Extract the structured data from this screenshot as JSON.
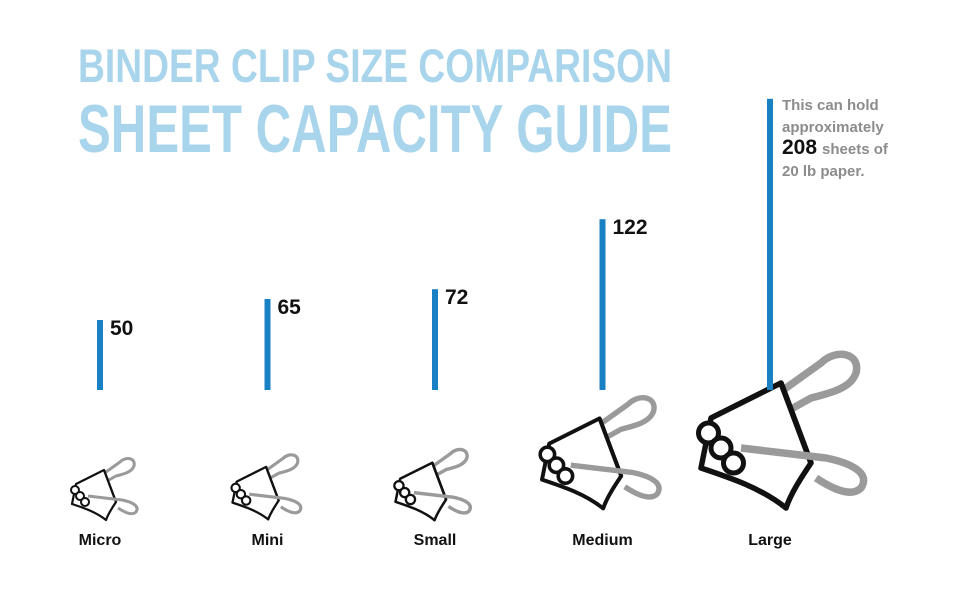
{
  "chart_data": {
    "type": "bar",
    "title": "BINDER CLIP SIZE COMPARISON",
    "subtitle": "SHEET CAPACITY GUIDE",
    "categories": [
      "Micro",
      "Mini",
      "Small",
      "Medium",
      "Large"
    ],
    "values": [
      50,
      65,
      72,
      122,
      208
    ],
    "color": "#1a80c4",
    "annotation": {
      "lines_before": [
        "This can hold",
        "approximately"
      ],
      "after_value": [
        "sheets of",
        "20 lb paper."
      ]
    }
  }
}
